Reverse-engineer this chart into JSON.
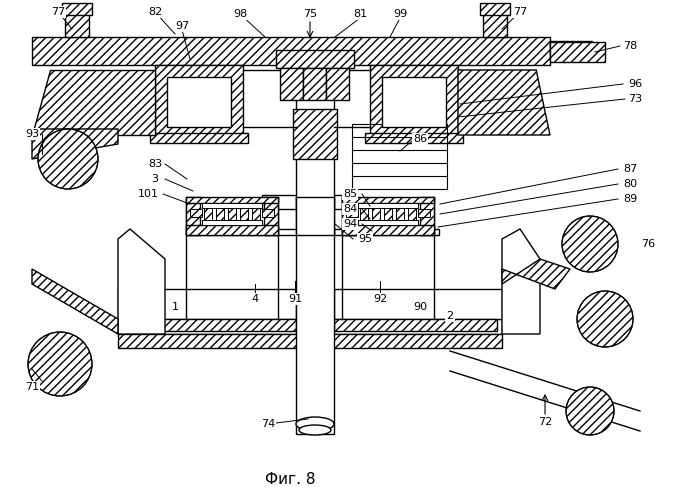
{
  "title": "Фиг. 8",
  "bg_color": "#ffffff",
  "line_color": "#000000",
  "figsize": [
    6.8,
    4.99
  ],
  "dpi": 100
}
